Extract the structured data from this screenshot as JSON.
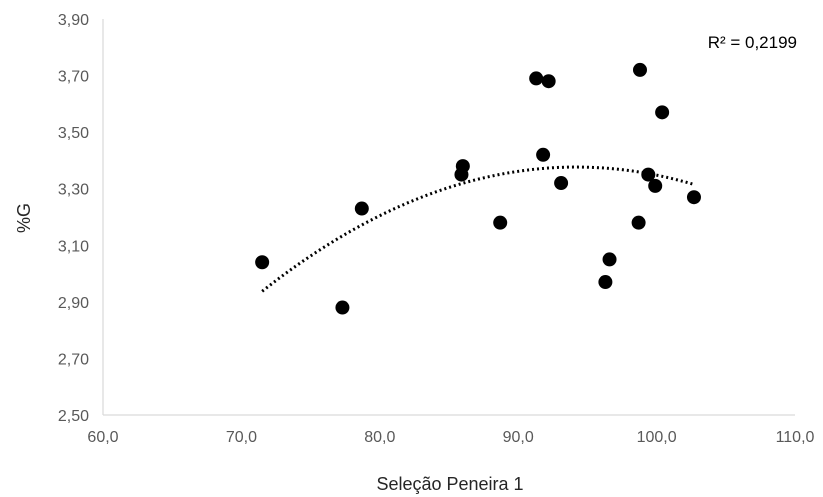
{
  "chart_data": {
    "type": "scatter",
    "title": "",
    "xlabel": "Seleção Peneira 1",
    "ylabel": "%G",
    "xlim": [
      60,
      110
    ],
    "ylim": [
      2.5,
      3.9
    ],
    "x_ticks": [
      "60,0",
      "70,0",
      "80,0",
      "90,0",
      "100,0",
      "110,0"
    ],
    "y_ticks": [
      "2,50",
      "2,70",
      "2,90",
      "3,10",
      "3,30",
      "3,50",
      "3,70",
      "3,90"
    ],
    "grid": false,
    "legend": "none",
    "series": [
      {
        "points": [
          [
            71.5,
            3.04
          ],
          [
            77.3,
            2.88
          ],
          [
            78.7,
            3.23
          ],
          [
            86.0,
            3.38
          ],
          [
            85.9,
            3.35
          ],
          [
            88.7,
            3.18
          ],
          [
            91.3,
            3.69
          ],
          [
            91.8,
            3.42
          ],
          [
            92.2,
            3.68
          ],
          [
            93.1,
            3.32
          ],
          [
            96.3,
            2.97
          ],
          [
            96.6,
            3.05
          ],
          [
            98.7,
            3.18
          ],
          [
            98.8,
            3.72
          ],
          [
            99.4,
            3.35
          ],
          [
            99.9,
            3.31
          ],
          [
            100.4,
            3.57
          ],
          [
            102.7,
            3.27
          ]
        ],
        "color": "#000000"
      }
    ],
    "trendline": {
      "type": "polynomial-2",
      "style": "dotted",
      "color": "#000000",
      "x_range": [
        71.5,
        102.7
      ],
      "points": [
        [
          71.5,
          2.94
        ],
        [
          80.0,
          3.2
        ],
        [
          87.0,
          3.33
        ],
        [
          93.5,
          3.38
        ],
        [
          98.0,
          3.37
        ],
        [
          102.7,
          3.31
        ]
      ]
    },
    "annotations": [
      {
        "text": "R² = 0,2199",
        "position": "top-right"
      }
    ]
  }
}
